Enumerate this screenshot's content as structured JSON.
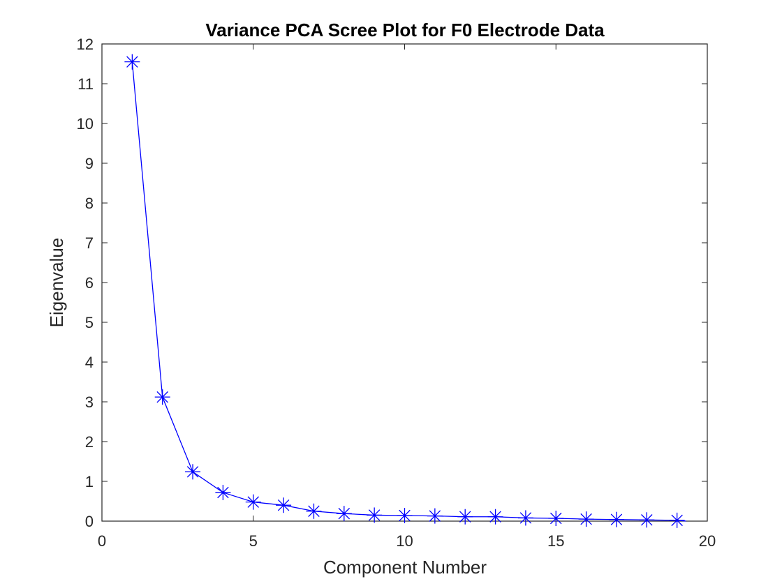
{
  "chart_data": {
    "type": "line",
    "title": "Variance PCA Scree Plot for F0 Electrode Data",
    "xlabel": "Component Number",
    "ylabel": "Eigenvalue",
    "xlim": [
      0,
      20
    ],
    "ylim": [
      0,
      12
    ],
    "xticks": [
      "0",
      "5",
      "10",
      "15",
      "20"
    ],
    "yticks": [
      "0",
      "1",
      "2",
      "3",
      "4",
      "5",
      "6",
      "7",
      "8",
      "9",
      "10",
      "11",
      "12"
    ],
    "grid": false,
    "legend": "none",
    "line_color": "#0000ff",
    "marker": "asterisk",
    "series": [
      {
        "x": [
          1,
          2,
          3,
          4,
          5,
          6,
          7,
          8,
          9,
          10,
          11,
          12,
          13,
          14,
          15,
          16,
          17,
          18,
          19
        ],
        "values": [
          11.55,
          3.12,
          1.24,
          0.72,
          0.48,
          0.4,
          0.25,
          0.19,
          0.15,
          0.14,
          0.13,
          0.11,
          0.11,
          0.08,
          0.07,
          0.05,
          0.04,
          0.03,
          0.02
        ]
      }
    ],
    "line_end": [
      19.3,
      0.0
    ]
  }
}
